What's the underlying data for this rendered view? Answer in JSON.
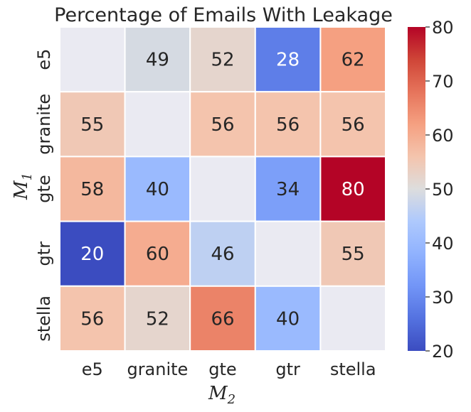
{
  "chart_data": {
    "type": "heatmap",
    "title": "Percentage of Emails With Leakage",
    "xlabel": "M",
    "xlabel_sub": "2",
    "ylabel": "M",
    "ylabel_sub": "1",
    "x_categories": [
      "e5",
      "granite",
      "gte",
      "gtr",
      "stella"
    ],
    "y_categories": [
      "e5",
      "granite",
      "gte",
      "gtr",
      "stella"
    ],
    "values": [
      [
        null,
        49,
        52,
        28,
        62
      ],
      [
        55,
        null,
        56,
        56,
        56
      ],
      [
        58,
        40,
        null,
        34,
        80
      ],
      [
        20,
        60,
        46,
        null,
        55
      ],
      [
        56,
        52,
        66,
        40,
        null
      ]
    ],
    "colormap": "coolwarm",
    "vmin": 20,
    "vmax": 80,
    "colorbar_ticks": [
      20,
      30,
      40,
      50,
      60,
      70,
      80
    ],
    "colors": {
      "low": "#3b4cc0",
      "mid": "#dddddd",
      "high": "#b40426",
      "diagonal": "#eaeaf2",
      "grid": "#ffffff"
    }
  }
}
